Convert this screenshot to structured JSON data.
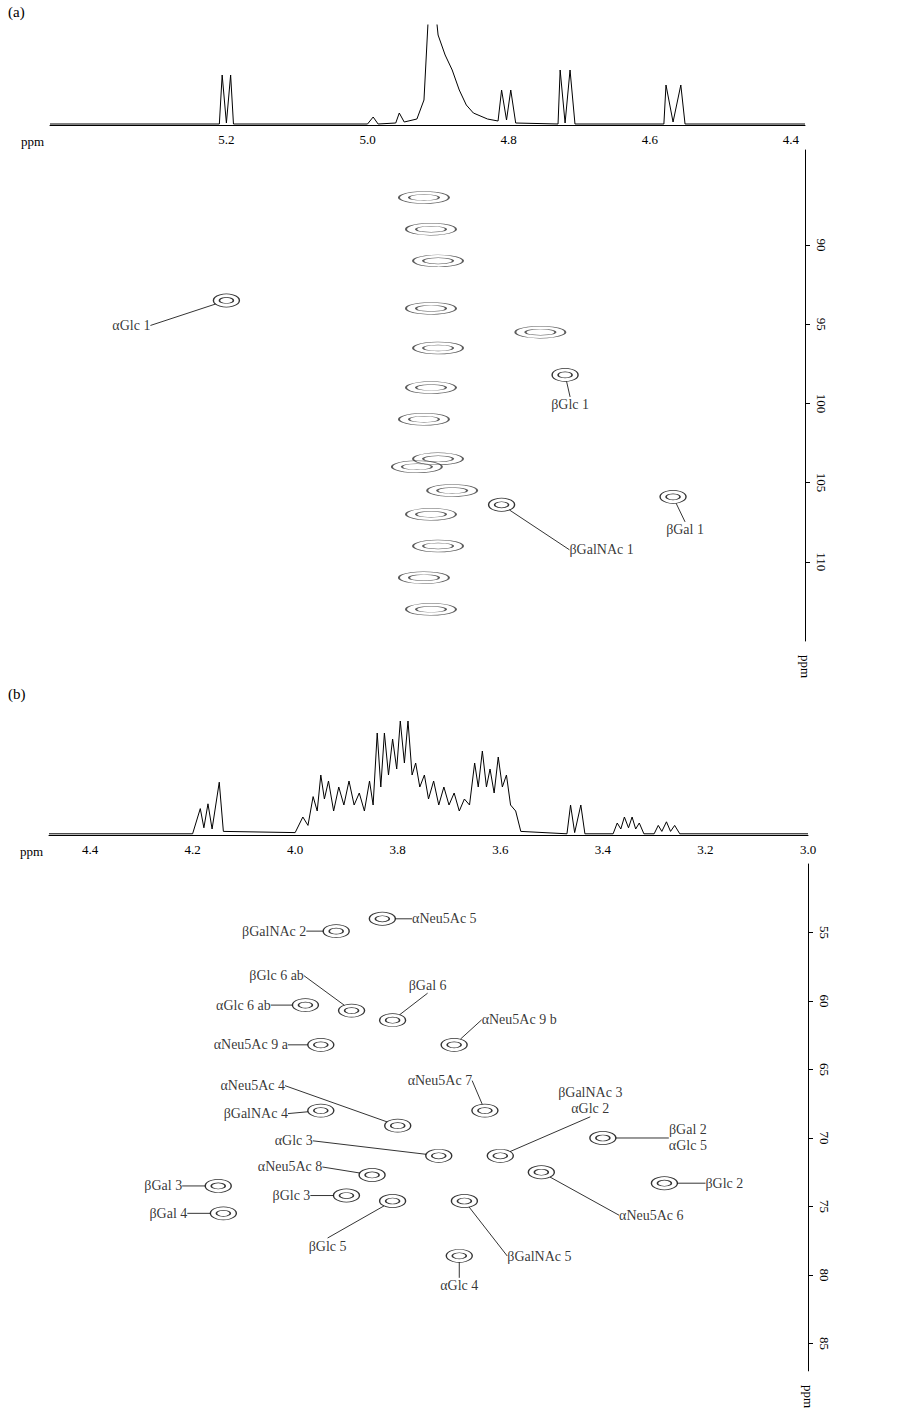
{
  "chart_data": [
    {
      "type": "scatter",
      "panel": "(a)",
      "x_label": "ppm",
      "y_label": "ppm",
      "xlim": [
        5.45,
        4.38
      ],
      "xticks": [
        5.2,
        {
          "value": 5,
          "label": "5.0"
        },
        4.8,
        4.6,
        4.4
      ],
      "ylim": [
        84,
        115
      ],
      "yticks": [
        90,
        95,
        100,
        105,
        110
      ],
      "spectrum": {
        "ylim": [
          0,
          1
        ],
        "x": [
          5.45,
          5.21,
          5.206,
          5.2,
          5.194,
          5.19,
          5.0,
          4.992,
          4.985,
          4.96,
          4.955,
          4.948,
          4.93,
          4.92,
          4.91,
          4.9,
          4.89,
          4.88,
          4.87,
          4.86,
          4.85,
          4.83,
          4.815,
          4.81,
          4.803,
          4.797,
          4.79,
          4.73,
          4.727,
          4.72,
          4.713,
          4.706,
          4.58,
          4.577,
          4.567,
          4.556,
          4.55,
          4.38
        ],
        "values": [
          0.01,
          0.01,
          0.5,
          0.02,
          0.5,
          0.01,
          0.01,
          0.08,
          0.01,
          0.02,
          0.12,
          0.03,
          0.06,
          0.25,
          1.6,
          0.9,
          0.7,
          0.55,
          0.35,
          0.2,
          0.12,
          0.06,
          0.04,
          0.35,
          0.05,
          0.35,
          0.02,
          0.01,
          0.55,
          0.02,
          0.55,
          0.01,
          0.01,
          0.4,
          0.03,
          0.4,
          0.01,
          0.01
        ]
      },
      "peaks": [
        {
          "x": 5.2,
          "y": 93.5,
          "labels": [
            "αGlc 1"
          ]
        },
        {
          "x": 4.72,
          "y": 98.2,
          "labels": [
            "βGlc 1"
          ]
        },
        {
          "x": 4.81,
          "y": 106.4,
          "labels": [
            "βGalNAc 1"
          ]
        },
        {
          "x": 4.567,
          "y": 105.9,
          "labels": [
            "βGal 1"
          ]
        }
      ],
      "unlabeled_peaks": [
        [
          4.92,
          87
        ],
        [
          4.91,
          89
        ],
        [
          4.9,
          91
        ],
        [
          4.91,
          94
        ],
        [
          4.9,
          96.5
        ],
        [
          4.91,
          99
        ],
        [
          4.92,
          101
        ],
        [
          4.9,
          103.5
        ],
        [
          4.88,
          105.5
        ],
        [
          4.93,
          104
        ],
        [
          4.91,
          107
        ],
        [
          4.9,
          109
        ],
        [
          4.92,
          111
        ],
        [
          4.91,
          113
        ],
        [
          4.755,
          95.5
        ]
      ]
    },
    {
      "type": "scatter",
      "panel": "(b)",
      "x_label": "ppm",
      "y_label": "ppm",
      "xlim": [
        4.48,
        3
      ],
      "xticks": [
        4.4,
        4.2,
        {
          "value": 4,
          "label": "4.0"
        },
        3.8,
        3.6,
        3.4,
        3.2,
        {
          "value": 3,
          "label": "3.0"
        }
      ],
      "ylim": [
        50,
        87
      ],
      "yticks": [
        55,
        60,
        65,
        70,
        75,
        80,
        85
      ],
      "spectrum": {
        "ylim": [
          0,
          1
        ],
        "x": [
          4.48,
          4.2,
          4.185,
          4.178,
          4.17,
          4.162,
          4.148,
          4.14,
          4.0,
          3.985,
          3.975,
          3.965,
          3.957,
          3.95,
          3.943,
          3.935,
          3.925,
          3.915,
          3.905,
          3.895,
          3.885,
          3.875,
          3.865,
          3.855,
          3.848,
          3.84,
          3.833,
          3.826,
          3.818,
          3.81,
          3.802,
          3.795,
          3.787,
          3.78,
          3.772,
          3.765,
          3.757,
          3.748,
          3.74,
          3.73,
          3.72,
          3.71,
          3.7,
          3.69,
          3.68,
          3.67,
          3.66,
          3.65,
          3.643,
          3.635,
          3.627,
          3.62,
          3.612,
          3.604,
          3.596,
          3.588,
          3.58,
          3.57,
          3.56,
          3.47,
          3.463,
          3.455,
          3.443,
          3.435,
          3.38,
          3.372,
          3.365,
          3.358,
          3.35,
          3.343,
          3.336,
          3.329,
          3.32,
          3.3,
          3.292,
          3.285,
          3.276,
          3.268,
          3.26,
          3.25,
          3
        ],
        "values": [
          0.01,
          0.01,
          0.22,
          0.06,
          0.26,
          0.05,
          0.44,
          0.03,
          0.02,
          0.15,
          0.08,
          0.32,
          0.2,
          0.5,
          0.3,
          0.45,
          0.2,
          0.4,
          0.25,
          0.45,
          0.25,
          0.35,
          0.2,
          0.45,
          0.25,
          0.85,
          0.4,
          0.85,
          0.5,
          0.8,
          0.55,
          0.95,
          0.6,
          0.95,
          0.5,
          0.6,
          0.4,
          0.5,
          0.3,
          0.45,
          0.25,
          0.4,
          0.25,
          0.35,
          0.2,
          0.3,
          0.25,
          0.6,
          0.4,
          0.7,
          0.4,
          0.55,
          0.35,
          0.65,
          0.4,
          0.5,
          0.25,
          0.2,
          0.03,
          0.01,
          0.25,
          0.02,
          0.25,
          0.01,
          0.01,
          0.1,
          0.05,
          0.15,
          0.06,
          0.15,
          0.05,
          0.1,
          0.01,
          0.01,
          0.08,
          0.03,
          0.11,
          0.03,
          0.08,
          0.01,
          0.01
        ]
      },
      "peaks": [
        {
          "x": 3.92,
          "y": 54.9,
          "labels": [
            "βGalNAc 2"
          ]
        },
        {
          "x": 3.83,
          "y": 54.0,
          "labels": [
            "αNeu5Ac 5"
          ]
        },
        {
          "x": 3.98,
          "y": 60.3,
          "labels": [
            "αGlc 6 ab"
          ]
        },
        {
          "x": 3.89,
          "y": 60.7,
          "labels": [
            "βGlc 6 ab"
          ]
        },
        {
          "x": 3.81,
          "y": 61.4,
          "labels": [
            "βGal 6"
          ]
        },
        {
          "x": 3.95,
          "y": 63.2,
          "labels": [
            "αNeu5Ac 9 a"
          ]
        },
        {
          "x": 3.69,
          "y": 63.2,
          "labels": [
            "αNeu5Ac 9 b"
          ]
        },
        {
          "x": 3.8,
          "y": 69.1,
          "labels": [
            "αNeu5Ac 4"
          ]
        },
        {
          "x": 3.95,
          "y": 68.0,
          "labels": [
            "βGalNAc 4"
          ]
        },
        {
          "x": 3.63,
          "y": 68.0,
          "labels": [
            "αNeu5Ac 7"
          ]
        },
        {
          "x": 3.72,
          "y": 71.3,
          "labels": [
            "αGlc 3"
          ]
        },
        {
          "x": 3.6,
          "y": 71.3,
          "labels": [
            "βGalNAc 3",
            "αGlc 2"
          ]
        },
        {
          "x": 3.4,
          "y": 70.0,
          "labels": [
            "βGal 2",
            "αGlc 5"
          ]
        },
        {
          "x": 3.85,
          "y": 72.7,
          "labels": [
            "αNeu5Ac 8"
          ]
        },
        {
          "x": 3.52,
          "y": 72.5,
          "labels": [
            "αNeu5Ac 6"
          ]
        },
        {
          "x": 3.28,
          "y": 73.3,
          "labels": [
            "βGlc 2"
          ]
        },
        {
          "x": 3.9,
          "y": 74.2,
          "labels": [
            "βGlc 3"
          ]
        },
        {
          "x": 3.81,
          "y": 74.6,
          "labels": [
            "βGlc 5"
          ]
        },
        {
          "x": 3.67,
          "y": 74.6,
          "labels": [
            "βGalNAc 5"
          ]
        },
        {
          "x": 4.15,
          "y": 73.5,
          "labels": [
            "βGal 3"
          ]
        },
        {
          "x": 4.14,
          "y": 75.5,
          "labels": [
            "βGal 4"
          ]
        },
        {
          "x": 3.68,
          "y": 78.6,
          "labels": [
            "αGlc 4"
          ]
        }
      ],
      "unlabeled_peaks": []
    }
  ]
}
